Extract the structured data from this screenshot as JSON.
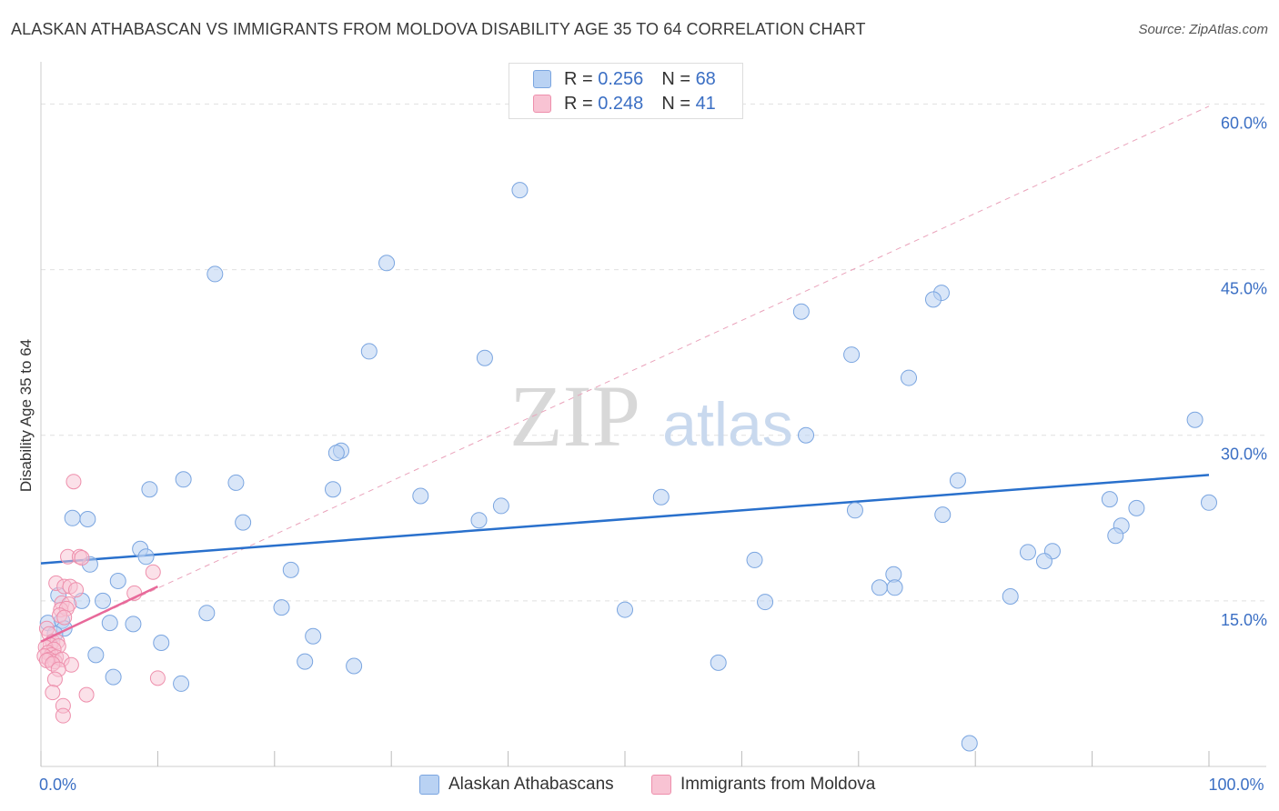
{
  "title": "ALASKAN ATHABASCAN VS IMMIGRANTS FROM MOLDOVA DISABILITY AGE 35 TO 64 CORRELATION CHART",
  "source": "Source: ZipAtlas.com",
  "watermark": {
    "zip": "ZIP",
    "atlas": "atlas"
  },
  "legend": {
    "r_label": "R =",
    "n_label": "N =",
    "series1": {
      "r": "0.256",
      "n": "68"
    },
    "series2": {
      "r": "0.248",
      "n": "41"
    }
  },
  "bottom_legend": {
    "series1": "Alaskan Athabascans",
    "series2": "Immigrants from Moldova"
  },
  "colors": {
    "blue_fill": "#b9d2f3",
    "blue_stroke": "#7aa5e0",
    "blue_line": "#2970cc",
    "pink_fill": "#f8c3d3",
    "pink_stroke": "#ee8fac",
    "pink_line": "#e8699a",
    "axis_text": "#3b6fc4",
    "grid": "#e0e0e0"
  },
  "chart_data": {
    "type": "scatter",
    "title": "ALASKAN ATHABASCAN VS IMMIGRANTS FROM MOLDOVA DISABILITY AGE 35 TO 64 CORRELATION CHART",
    "xlabel": "",
    "ylabel": "Disability Age 35 to 64",
    "xlim": [
      0,
      100
    ],
    "ylim": [
      0,
      63
    ],
    "x_tick_labels": [
      {
        "value": 0,
        "label": "0.0%"
      },
      {
        "value": 100,
        "label": "100.0%"
      }
    ],
    "y_tick_labels": [
      {
        "value": 15,
        "label": "15.0%"
      },
      {
        "value": 30,
        "label": "30.0%"
      },
      {
        "value": 45,
        "label": "45.0%"
      },
      {
        "value": 60,
        "label": "60.0%"
      }
    ],
    "series": [
      {
        "name": "Alaskan Athabascans",
        "r": 0.256,
        "n": 68,
        "trend": {
          "x": [
            0,
            100
          ],
          "y": [
            18.4,
            26.4
          ]
        },
        "points": [
          {
            "x": 41.0,
            "y": 52.2
          },
          {
            "x": 14.9,
            "y": 44.6
          },
          {
            "x": 29.6,
            "y": 45.6
          },
          {
            "x": 77.1,
            "y": 42.9
          },
          {
            "x": 76.4,
            "y": 42.3
          },
          {
            "x": 65.1,
            "y": 41.2
          },
          {
            "x": 28.1,
            "y": 37.6
          },
          {
            "x": 38.0,
            "y": 37.0
          },
          {
            "x": 69.4,
            "y": 37.3
          },
          {
            "x": 74.3,
            "y": 35.2
          },
          {
            "x": 98.8,
            "y": 31.4
          },
          {
            "x": 65.5,
            "y": 30.0
          },
          {
            "x": 25.7,
            "y": 28.6
          },
          {
            "x": 25.3,
            "y": 28.4
          },
          {
            "x": 12.2,
            "y": 26.0
          },
          {
            "x": 16.7,
            "y": 25.7
          },
          {
            "x": 9.3,
            "y": 25.1
          },
          {
            "x": 25.0,
            "y": 25.1
          },
          {
            "x": 32.5,
            "y": 24.5
          },
          {
            "x": 53.1,
            "y": 24.4
          },
          {
            "x": 78.5,
            "y": 25.9
          },
          {
            "x": 39.4,
            "y": 23.6
          },
          {
            "x": 2.7,
            "y": 22.5
          },
          {
            "x": 4.0,
            "y": 22.4
          },
          {
            "x": 17.3,
            "y": 22.1
          },
          {
            "x": 37.5,
            "y": 22.3
          },
          {
            "x": 69.7,
            "y": 23.2
          },
          {
            "x": 77.2,
            "y": 22.8
          },
          {
            "x": 91.5,
            "y": 24.2
          },
          {
            "x": 93.8,
            "y": 23.4
          },
          {
            "x": 100.0,
            "y": 23.9
          },
          {
            "x": 92.5,
            "y": 21.8
          },
          {
            "x": 92.0,
            "y": 20.9
          },
          {
            "x": 8.5,
            "y": 19.7
          },
          {
            "x": 9.0,
            "y": 19.0
          },
          {
            "x": 84.5,
            "y": 19.4
          },
          {
            "x": 86.6,
            "y": 19.5
          },
          {
            "x": 85.9,
            "y": 18.6
          },
          {
            "x": 4.2,
            "y": 18.3
          },
          {
            "x": 21.4,
            "y": 17.8
          },
          {
            "x": 61.1,
            "y": 18.7
          },
          {
            "x": 6.6,
            "y": 16.8
          },
          {
            "x": 73.0,
            "y": 17.4
          },
          {
            "x": 71.8,
            "y": 16.2
          },
          {
            "x": 73.1,
            "y": 16.2
          },
          {
            "x": 1.5,
            "y": 15.5
          },
          {
            "x": 3.5,
            "y": 15.0
          },
          {
            "x": 5.3,
            "y": 15.0
          },
          {
            "x": 62.0,
            "y": 14.9
          },
          {
            "x": 83.0,
            "y": 15.4
          },
          {
            "x": 20.6,
            "y": 14.4
          },
          {
            "x": 14.2,
            "y": 13.9
          },
          {
            "x": 50.0,
            "y": 14.2
          },
          {
            "x": 0.6,
            "y": 13.0
          },
          {
            "x": 1.8,
            "y": 13.2
          },
          {
            "x": 5.9,
            "y": 13.0
          },
          {
            "x": 7.9,
            "y": 12.9
          },
          {
            "x": 23.3,
            "y": 11.8
          },
          {
            "x": 10.3,
            "y": 11.2
          },
          {
            "x": 4.7,
            "y": 10.1
          },
          {
            "x": 22.6,
            "y": 9.5
          },
          {
            "x": 26.8,
            "y": 9.1
          },
          {
            "x": 58.0,
            "y": 9.4
          },
          {
            "x": 6.2,
            "y": 8.1
          },
          {
            "x": 12.0,
            "y": 7.5
          },
          {
            "x": 79.5,
            "y": 2.1
          },
          {
            "x": 2.0,
            "y": 12.5
          },
          {
            "x": 1.2,
            "y": 12.0
          }
        ]
      },
      {
        "name": "Immigrants from Moldova",
        "r": 0.248,
        "n": 41,
        "trend": {
          "x": [
            0,
            10
          ],
          "y": [
            11.3,
            16.3
          ]
        },
        "dashed_extension": {
          "x": [
            0,
            100
          ],
          "y": [
            11.3,
            59.8
          ]
        },
        "points": [
          {
            "x": 2.8,
            "y": 25.8
          },
          {
            "x": 2.3,
            "y": 19.0
          },
          {
            "x": 3.3,
            "y": 19.0
          },
          {
            "x": 3.5,
            "y": 18.9
          },
          {
            "x": 9.6,
            "y": 17.6
          },
          {
            "x": 1.3,
            "y": 16.6
          },
          {
            "x": 2.0,
            "y": 16.3
          },
          {
            "x": 2.5,
            "y": 16.3
          },
          {
            "x": 3.0,
            "y": 16.0
          },
          {
            "x": 8.0,
            "y": 15.7
          },
          {
            "x": 1.8,
            "y": 14.8
          },
          {
            "x": 2.4,
            "y": 14.7
          },
          {
            "x": 1.7,
            "y": 14.2
          },
          {
            "x": 2.2,
            "y": 14.3
          },
          {
            "x": 1.6,
            "y": 13.7
          },
          {
            "x": 2.0,
            "y": 13.5
          },
          {
            "x": 0.5,
            "y": 12.5
          },
          {
            "x": 0.7,
            "y": 12.0
          },
          {
            "x": 1.0,
            "y": 11.3
          },
          {
            "x": 1.4,
            "y": 11.3
          },
          {
            "x": 0.8,
            "y": 11.0
          },
          {
            "x": 1.5,
            "y": 10.9
          },
          {
            "x": 0.4,
            "y": 10.8
          },
          {
            "x": 1.1,
            "y": 10.6
          },
          {
            "x": 0.6,
            "y": 10.3
          },
          {
            "x": 0.9,
            "y": 10.1
          },
          {
            "x": 0.3,
            "y": 10.0
          },
          {
            "x": 1.3,
            "y": 9.9
          },
          {
            "x": 0.7,
            "y": 9.7
          },
          {
            "x": 1.2,
            "y": 9.5
          },
          {
            "x": 0.5,
            "y": 9.6
          },
          {
            "x": 1.8,
            "y": 9.7
          },
          {
            "x": 1.0,
            "y": 9.3
          },
          {
            "x": 2.6,
            "y": 9.2
          },
          {
            "x": 1.5,
            "y": 8.8
          },
          {
            "x": 1.2,
            "y": 7.9
          },
          {
            "x": 10.0,
            "y": 8.0
          },
          {
            "x": 1.0,
            "y": 6.7
          },
          {
            "x": 3.9,
            "y": 6.5
          },
          {
            "x": 1.9,
            "y": 5.5
          },
          {
            "x": 1.9,
            "y": 4.6
          }
        ]
      }
    ]
  }
}
